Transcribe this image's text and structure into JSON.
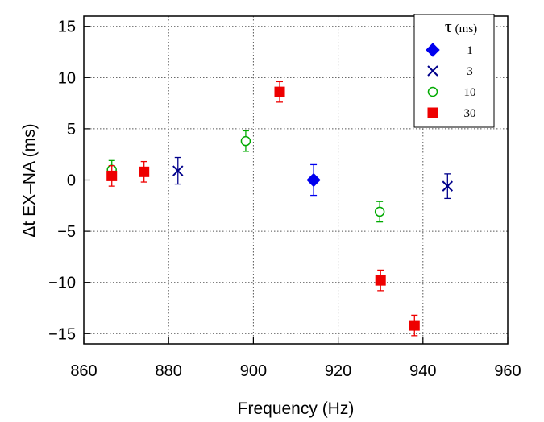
{
  "chart_data": {
    "type": "scatter",
    "title": "",
    "xlabel": "Frequency  (Hz)",
    "ylabel": "Δt  EX–NA  (ms)",
    "xlim": [
      860,
      960
    ],
    "ylim": [
      -16,
      16
    ],
    "xticks": [
      860,
      880,
      900,
      920,
      940,
      960
    ],
    "yticks": [
      -15,
      -10,
      -5,
      0,
      5,
      10,
      15
    ],
    "xtick_labels": [
      "860",
      "880",
      "900",
      "920",
      "940",
      "960"
    ],
    "ytick_labels": [
      "−15",
      "−10",
      "−5",
      "0",
      "5",
      "10",
      "15"
    ],
    "grid": true,
    "legend_position": "top-right",
    "legend": {
      "title_symbol": "τ",
      "title_unit": "(ms)"
    },
    "series": [
      {
        "name": "1",
        "marker": "diamond",
        "color": "#0000ee",
        "points": [
          {
            "x": 914.2,
            "y": 0.0,
            "err": 1.5
          }
        ]
      },
      {
        "name": "3",
        "marker": "x",
        "color": "#00008b",
        "points": [
          {
            "x": 882.2,
            "y": 0.9,
            "err": 1.3
          },
          {
            "x": 945.8,
            "y": -0.6,
            "err": 1.2
          }
        ]
      },
      {
        "name": "10",
        "marker": "open-circle",
        "color": "#00aa00",
        "points": [
          {
            "x": 866.6,
            "y": 1.0,
            "err": 0.9
          },
          {
            "x": 898.2,
            "y": 3.8,
            "err": 1.0
          },
          {
            "x": 929.8,
            "y": -3.1,
            "err": 1.0
          }
        ]
      },
      {
        "name": "30",
        "marker": "filled-square",
        "color": "#ee0000",
        "points": [
          {
            "x": 866.6,
            "y": 0.4,
            "err": 1.0
          },
          {
            "x": 874.2,
            "y": 0.8,
            "err": 1.0
          },
          {
            "x": 906.2,
            "y": 8.6,
            "err": 1.0
          },
          {
            "x": 930.0,
            "y": -9.8,
            "err": 1.0
          },
          {
            "x": 938.0,
            "y": -14.2,
            "err": 1.0
          }
        ]
      }
    ]
  }
}
